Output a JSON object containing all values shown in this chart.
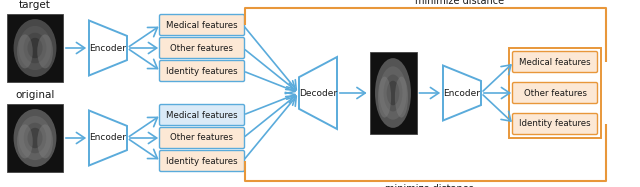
{
  "fig_width": 6.4,
  "fig_height": 1.87,
  "dpi": 100,
  "bg_color": "#ffffff",
  "blue_color": "#5aabdb",
  "orange_color": "#e8973a",
  "box_fill_orange": "#fce8d5",
  "box_fill_blue": "#daeaf7",
  "text_color": "#1a1a1a",
  "labels_top": [
    "Medical features",
    "Other features",
    "Identity features"
  ],
  "labels_bottom": [
    "Medical features",
    "Other features",
    "Identity features"
  ],
  "labels_right": [
    "Medical features",
    "Other features",
    "Identity features"
  ],
  "label_target": "target",
  "label_original": "original",
  "label_encoder": "Encoder",
  "label_decoder": "Decoder",
  "label_encoder2": "Encoder",
  "label_minimize_top": "minimize distance",
  "label_minimize_bottom": "minimize distance"
}
